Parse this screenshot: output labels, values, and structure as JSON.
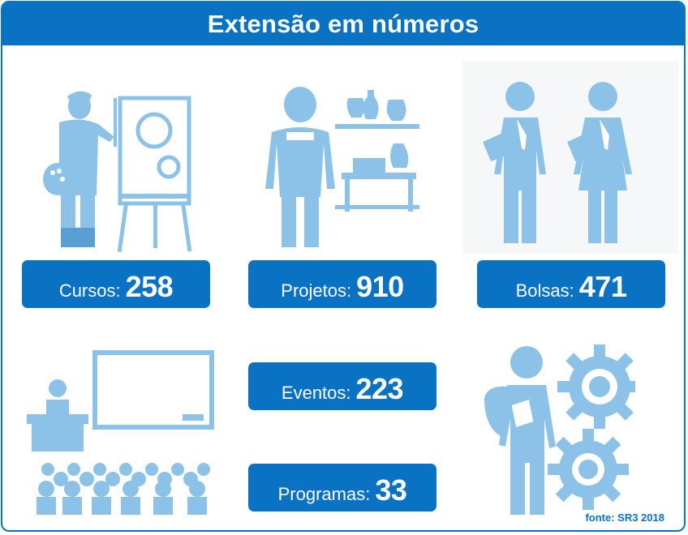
{
  "title": "Extensão em números",
  "stats": {
    "cursos": {
      "label": "Cursos:",
      "value": "258"
    },
    "projetos": {
      "label": "Projetos:",
      "value": "910"
    },
    "bolsas": {
      "label": "Bolsas:",
      "value": "471"
    },
    "eventos": {
      "label": "Eventos:",
      "value": "223"
    },
    "programas": {
      "label": "Programas:",
      "value": "33"
    }
  },
  "source": "fonte: SR3 2018",
  "colors": {
    "accent": "#0a72c2",
    "icon": "#8cc2e8",
    "icon_dark": "#5a9fd3"
  },
  "icons": [
    "painter-icon",
    "potter-icon",
    "students-icon",
    "teacher-class-icon",
    "student-gears-icon"
  ]
}
